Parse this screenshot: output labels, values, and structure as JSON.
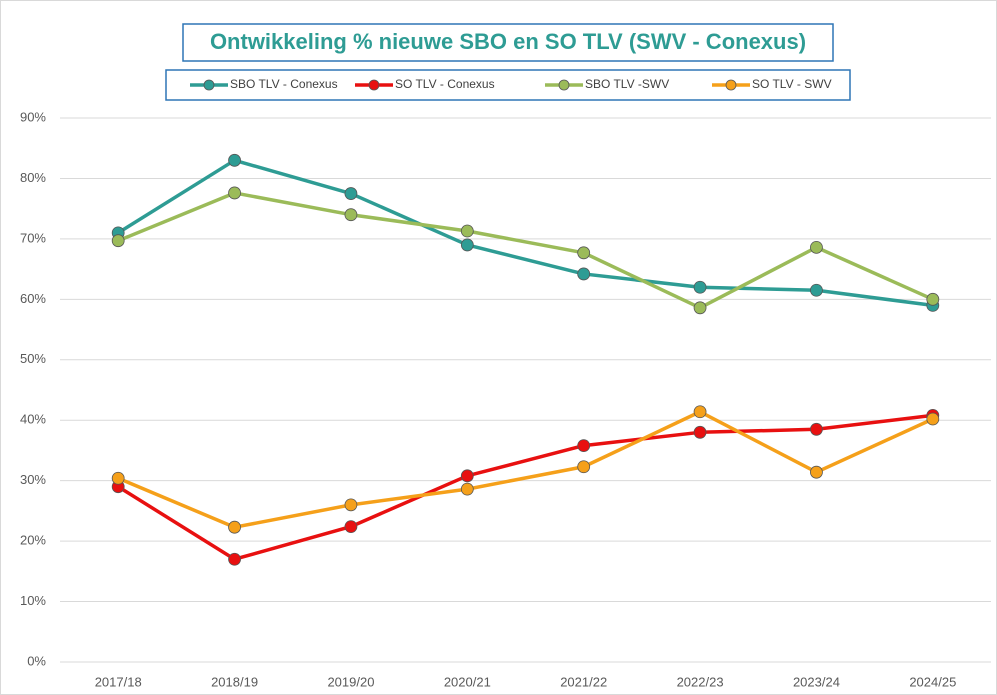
{
  "chart_data": {
    "type": "line",
    "title": "Ontwikkeling % nieuwe SBO en SO TLV (SWV - Conexus)",
    "categories": [
      "2017/18",
      "2018/19",
      "2019/20",
      "2020/21",
      "2021/22",
      "2022/23",
      "2023/24",
      "2024/25"
    ],
    "series": [
      {
        "name": "SBO TLV - Conexus",
        "color": "#2e9c94",
        "values": [
          71,
          83,
          77.5,
          69,
          64.2,
          62,
          61.5,
          59
        ]
      },
      {
        "name": "SO TLV - Conexus",
        "color": "#e81010",
        "values": [
          29,
          17,
          22.4,
          30.8,
          35.8,
          38,
          38.5,
          40.8
        ]
      },
      {
        "name": "SBO TLV -SWV",
        "color": "#9bbb59",
        "values": [
          69.7,
          77.6,
          74,
          71.3,
          67.7,
          58.6,
          68.6,
          60
        ]
      },
      {
        "name": "SO TLV - SWV",
        "color": "#f5a01a",
        "values": [
          30.4,
          22.3,
          26,
          28.6,
          32.3,
          41.4,
          31.4,
          40.2
        ]
      }
    ],
    "ylim": [
      0,
      90
    ],
    "yticks": [
      {
        "value": 0,
        "label": "0%"
      },
      {
        "value": 10,
        "label": "10%"
      },
      {
        "value": 20,
        "label": "20%"
      },
      {
        "value": 30,
        "label": "30%"
      },
      {
        "value": 40,
        "label": "40%"
      },
      {
        "value": 50,
        "label": "50%"
      },
      {
        "value": 60,
        "label": "60%"
      },
      {
        "value": 70,
        "label": "70%"
      },
      {
        "value": 80,
        "label": "80%"
      },
      {
        "value": 90,
        "label": "90%"
      }
    ],
    "grid": true,
    "legend": "top"
  }
}
